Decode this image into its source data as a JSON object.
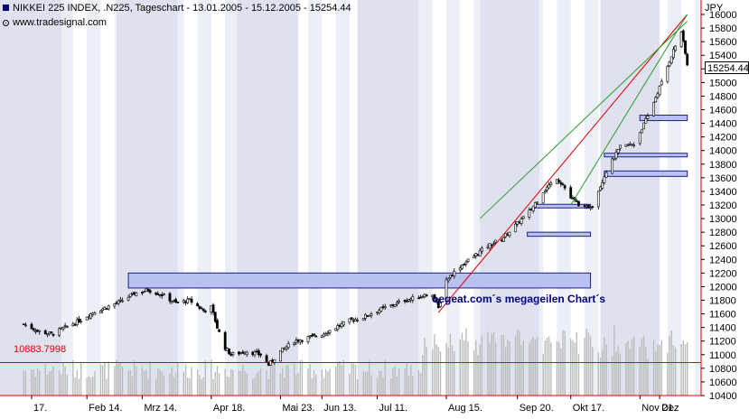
{
  "header": {
    "title": "NIKKEI 225 INDEX, .N225, Tageschart - 13.01.2005 - 15.12.2005 - 15254.44",
    "source": "www.tradesignal.com"
  },
  "currency_label": "JPY",
  "annotation": "oegeat.com´s megageilen Chart´s",
  "colors": {
    "band": "#dfe2ee",
    "candle_up": "#ffffff",
    "candle_down": "#000000",
    "volume": "#bcbcbc",
    "zone_fill": "#b9c1f1",
    "zone_border": "#1d1d8a",
    "support_line": "#e00000",
    "channel_line": "#2a9a2a",
    "axis": "#e00000"
  },
  "chart_data": {
    "type": "candlestick",
    "title": "NIKKEI 225 INDEX, .N225, Tageschart - 13.01.2005 - 15.12.2005 - 15254.44",
    "x_range": [
      "2005-01-13",
      "2005-12-15"
    ],
    "x_tick_labels": [
      "17.",
      "Feb 14.",
      "Mrz 14.",
      "Apr 18.",
      "Mai 23.",
      "Jun 13.",
      "Jul 11.",
      "Aug 15.",
      "Sep 20.",
      "Okt 17.",
      "Nov 21.",
      "Dez"
    ],
    "ylim": [
      10400,
      16000
    ],
    "y_ticks": [
      10400,
      10600,
      10800,
      11000,
      11200,
      11400,
      11600,
      11800,
      12000,
      12200,
      12400,
      12600,
      12800,
      13000,
      13200,
      13400,
      13600,
      13800,
      14000,
      14200,
      14400,
      14600,
      14800,
      15000,
      15200,
      15400,
      15600,
      15800,
      16000
    ],
    "y_tick_labels": [
      "10400",
      "10600",
      "10800",
      "11000",
      "11200",
      "11400",
      "11600",
      "11800",
      "12000",
      "12200",
      "12400",
      "12600",
      "12800",
      "13000",
      "13200",
      "13400",
      "13600",
      "13800",
      "14000",
      "14200",
      "14400",
      "14600",
      "14800",
      "15000",
      "15200",
      "15400",
      "15600",
      "15800",
      "16000"
    ],
    "last_price": 15254.44,
    "last_price_label": "15254.44",
    "horizontal_line": {
      "value": 10883.7998,
      "label": "10883.7998"
    },
    "close_path": [
      {
        "d": "2005-01-13",
        "c": 11450
      },
      {
        "d": "2005-01-20",
        "c": 11350
      },
      {
        "d": "2005-01-27",
        "c": 11300
      },
      {
        "d": "2005-02-03",
        "c": 11400
      },
      {
        "d": "2005-02-10",
        "c": 11500
      },
      {
        "d": "2005-02-17",
        "c": 11620
      },
      {
        "d": "2005-02-24",
        "c": 11700
      },
      {
        "d": "2005-03-03",
        "c": 11780
      },
      {
        "d": "2005-03-10",
        "c": 11900
      },
      {
        "d": "2005-03-17",
        "c": 11950
      },
      {
        "d": "2005-03-24",
        "c": 11880
      },
      {
        "d": "2005-03-31",
        "c": 11760
      },
      {
        "d": "2005-04-07",
        "c": 11800
      },
      {
        "d": "2005-04-14",
        "c": 11650
      },
      {
        "d": "2005-04-18",
        "c": 11700
      },
      {
        "d": "2005-04-21",
        "c": 11400
      },
      {
        "d": "2005-04-25",
        "c": 11100
      },
      {
        "d": "2005-04-28",
        "c": 11000
      },
      {
        "d": "2005-05-06",
        "c": 11050
      },
      {
        "d": "2005-05-13",
        "c": 11000
      },
      {
        "d": "2005-05-17",
        "c": 10850
      },
      {
        "d": "2005-05-23",
        "c": 11050
      },
      {
        "d": "2005-05-30",
        "c": 11200
      },
      {
        "d": "2005-06-06",
        "c": 11250
      },
      {
        "d": "2005-06-13",
        "c": 11300
      },
      {
        "d": "2005-06-20",
        "c": 11400
      },
      {
        "d": "2005-06-27",
        "c": 11500
      },
      {
        "d": "2005-07-04",
        "c": 11550
      },
      {
        "d": "2005-07-11",
        "c": 11650
      },
      {
        "d": "2005-07-18",
        "c": 11720
      },
      {
        "d": "2005-07-25",
        "c": 11800
      },
      {
        "d": "2005-08-01",
        "c": 11850
      },
      {
        "d": "2005-08-08",
        "c": 11900
      },
      {
        "d": "2005-08-11",
        "c": 11680
      },
      {
        "d": "2005-08-15",
        "c": 12100
      },
      {
        "d": "2005-08-22",
        "c": 12300
      },
      {
        "d": "2005-08-29",
        "c": 12450
      },
      {
        "d": "2005-09-05",
        "c": 12600
      },
      {
        "d": "2005-09-12",
        "c": 12700
      },
      {
        "d": "2005-09-19",
        "c": 12900
      },
      {
        "d": "2005-09-26",
        "c": 13100
      },
      {
        "d": "2005-10-03",
        "c": 13400
      },
      {
        "d": "2005-10-10",
        "c": 13600
      },
      {
        "d": "2005-10-13",
        "c": 13500
      },
      {
        "d": "2005-10-17",
        "c": 13300
      },
      {
        "d": "2005-10-24",
        "c": 13150
      },
      {
        "d": "2005-10-28",
        "c": 13200
      },
      {
        "d": "2005-11-04",
        "c": 13700
      },
      {
        "d": "2005-11-11",
        "c": 14050
      },
      {
        "d": "2005-11-18",
        "c": 14100
      },
      {
        "d": "2005-11-25",
        "c": 14500
      },
      {
        "d": "2005-12-02",
        "c": 15000
      },
      {
        "d": "2005-12-07",
        "c": 15400
      },
      {
        "d": "2005-12-12",
        "c": 15750
      },
      {
        "d": "2005-12-15",
        "c": 15254.44
      }
    ],
    "zones": [
      {
        "from": "2005-03-07",
        "to": "2005-10-27",
        "low": 11980,
        "high": 12200
      },
      {
        "from": "2005-09-25",
        "to": "2005-10-27",
        "low": 12740,
        "high": 12800
      },
      {
        "from": "2005-09-29",
        "to": "2005-10-27",
        "low": 13180,
        "high": 13210
      },
      {
        "from": "2005-11-03",
        "to": "2005-12-15",
        "low": 13620,
        "high": 13700
      },
      {
        "from": "2005-11-03",
        "to": "2005-12-15",
        "low": 13920,
        "high": 13960
      },
      {
        "from": "2005-11-21",
        "to": "2005-12-15",
        "low": 14440,
        "high": 14520
      }
    ],
    "trendlines": [
      {
        "color": "support_line",
        "from": {
          "d": "2005-08-11",
          "v": 11620
        },
        "to": {
          "d": "2005-12-15",
          "v": 16000
        }
      },
      {
        "color": "channel_line",
        "from": {
          "d": "2005-09-01",
          "v": 13000
        },
        "to": {
          "d": "2005-12-15",
          "v": 15900
        }
      },
      {
        "color": "channel_line",
        "from": {
          "d": "2005-10-17",
          "v": 13200
        },
        "to": {
          "d": "2005-12-15",
          "v": 16000
        }
      }
    ]
  }
}
